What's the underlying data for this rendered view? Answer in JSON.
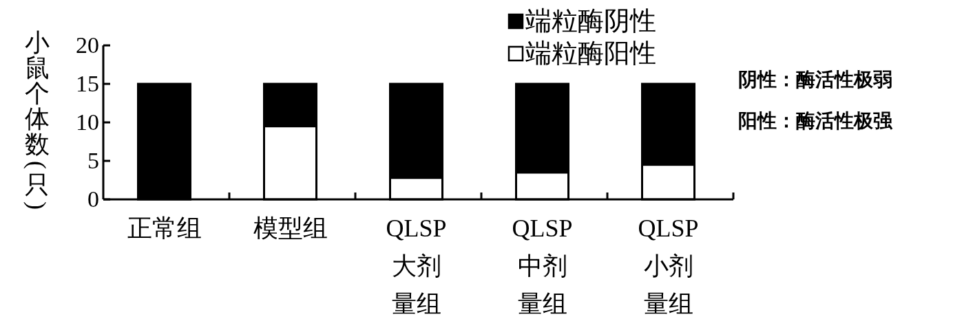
{
  "chart_data": {
    "type": "bar",
    "stacked": true,
    "ylabel": "小鼠个体数(只)",
    "categories": [
      "正常组",
      "模型组",
      "QLSP大剂量组",
      "QLSP中剂量组",
      "QLSP小剂量组"
    ],
    "series": [
      {
        "name": "端粒酶阳性",
        "color": "#ffffff",
        "values": [
          0,
          9.5,
          2.8,
          3.5,
          4.5
        ]
      },
      {
        "name": "端粒酶阴性",
        "color": "#000000",
        "values": [
          15,
          5.5,
          12.2,
          11.5,
          10.5
        ]
      }
    ],
    "ylim": [
      0,
      20
    ],
    "yticks": [
      0,
      5,
      10,
      15,
      20
    ],
    "grid": false,
    "legend": "top right",
    "annotations": [
      "阴性：酶活性极弱",
      "阳性：酶活性极强"
    ]
  }
}
